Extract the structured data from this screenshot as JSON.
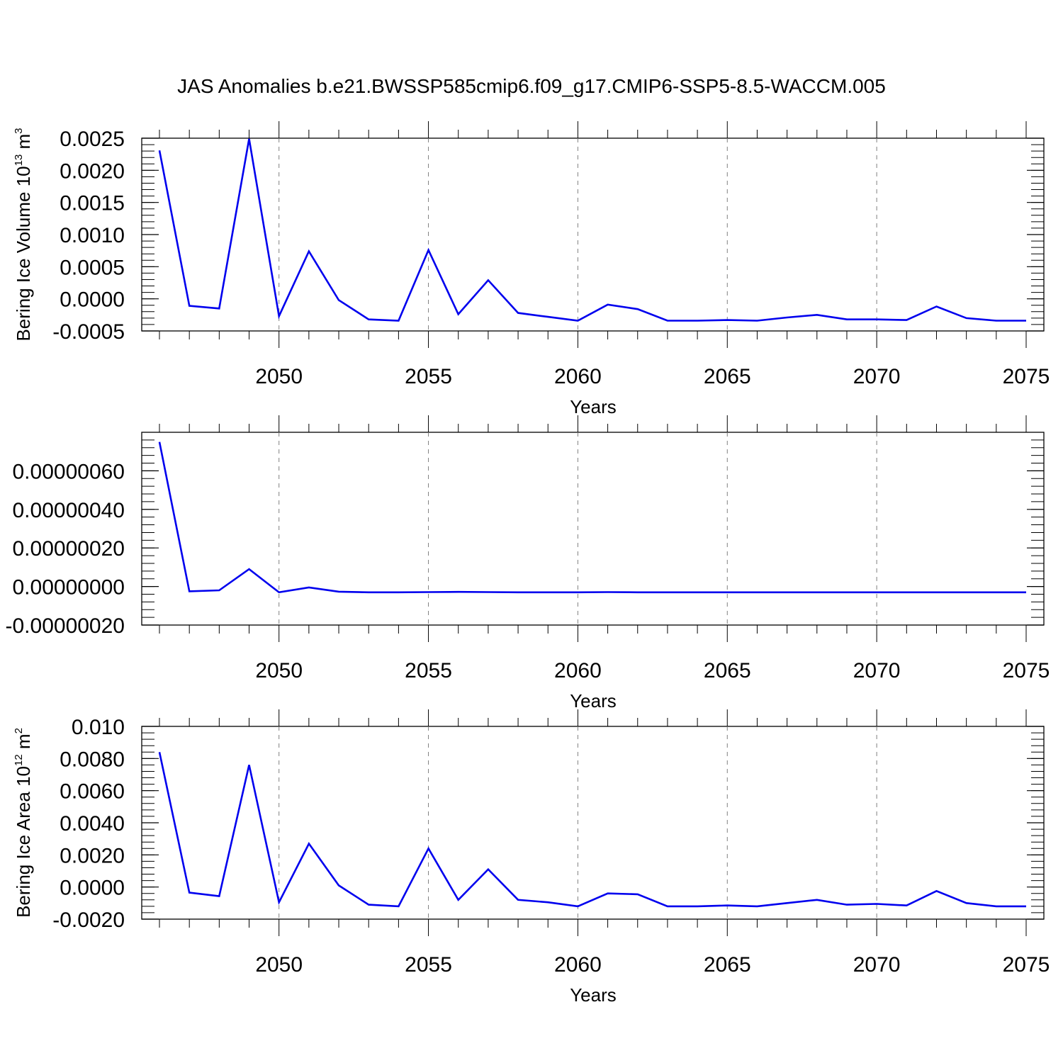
{
  "title": "JAS Anomalies b.e21.BWSSP585cmip6.f09_g17.CMIP6-SSP5-8.5-WACCM.005",
  "colors": {
    "line": "#0000ee",
    "axis": "#000000",
    "grid": "#808080"
  },
  "chart_data": [
    {
      "type": "line",
      "ylabel": {
        "text": "Bering Ice Volume 10",
        "exp": "13",
        "unit": " m",
        "unit_exp": "3"
      },
      "xlabel": "Years",
      "xlim": [
        2046,
        2075
      ],
      "ylim": [
        -0.0005,
        0.0025
      ],
      "xticks": [
        2050,
        2055,
        2060,
        2065,
        2070,
        2075
      ],
      "yticks": [
        -0.0005,
        0.0,
        0.0005,
        0.001,
        0.0015,
        0.002,
        0.0025
      ],
      "ytick_labels": [
        "-0.0005",
        "0.0000",
        "0.0005",
        "0.0010",
        "0.0015",
        "0.0020",
        "0.0025"
      ],
      "grid": "vertical-dashed",
      "x": [
        2046,
        2047,
        2048,
        2049,
        2050,
        2051,
        2052,
        2053,
        2054,
        2055,
        2056,
        2057,
        2058,
        2059,
        2060,
        2061,
        2062,
        2063,
        2064,
        2065,
        2066,
        2067,
        2068,
        2069,
        2070,
        2071,
        2072,
        2073,
        2074,
        2075
      ],
      "values": [
        0.00231,
        -0.00011,
        -0.00015,
        0.00249,
        -0.00027,
        0.00074,
        -2e-05,
        -0.00032,
        -0.00034,
        0.00076,
        -0.00024,
        0.00029,
        -0.00022,
        -0.00028,
        -0.00034,
        -9e-05,
        -0.00016,
        -0.00034,
        -0.00034,
        -0.00033,
        -0.00034,
        -0.00029,
        -0.00025,
        -0.00032,
        -0.00032,
        -0.00033,
        -0.00012,
        -0.0003,
        -0.00034,
        -0.00034
      ]
    },
    {
      "type": "line",
      "ylabel": null,
      "xlabel": "Years",
      "xlim": [
        2046,
        2075
      ],
      "ylim": [
        -2e-07,
        8e-07
      ],
      "xticks": [
        2050,
        2055,
        2060,
        2065,
        2070,
        2075
      ],
      "yticks": [
        -2e-07,
        0.0,
        2e-07,
        4e-07,
        6e-07
      ],
      "ytick_labels": [
        "-0.00000020",
        "0.00000000",
        "0.00000020",
        "0.00000040",
        "0.00000060"
      ],
      "grid": "vertical-dashed",
      "x": [
        2046,
        2047,
        2048,
        2049,
        2050,
        2051,
        2052,
        2053,
        2054,
        2055,
        2056,
        2057,
        2058,
        2059,
        2060,
        2061,
        2062,
        2063,
        2064,
        2065,
        2066,
        2067,
        2068,
        2069,
        2070,
        2071,
        2072,
        2073,
        2074,
        2075
      ],
      "values": [
        7.5e-07,
        -2.5e-08,
        -2e-08,
        9e-08,
        -3e-08,
        -5e-09,
        -2.7e-08,
        -3e-08,
        -3e-08,
        -2.9e-08,
        -2.8e-08,
        -2.9e-08,
        -3e-08,
        -3e-08,
        -3e-08,
        -2.9e-08,
        -3e-08,
        -3e-08,
        -3e-08,
        -3e-08,
        -3e-08,
        -3e-08,
        -3e-08,
        -3e-08,
        -3e-08,
        -3e-08,
        -3e-08,
        -3e-08,
        -3e-08,
        -3e-08
      ]
    },
    {
      "type": "line",
      "ylabel": {
        "text": "Bering Ice Area 10",
        "exp": "12",
        "unit": " m",
        "unit_exp": "2"
      },
      "xlabel": "Years",
      "xlim": [
        2046,
        2075
      ],
      "ylim": [
        -0.002,
        0.01
      ],
      "xticks": [
        2050,
        2055,
        2060,
        2065,
        2070,
        2075
      ],
      "yticks": [
        -0.002,
        0.0,
        0.002,
        0.004,
        0.006,
        0.008,
        0.01
      ],
      "ytick_labels": [
        "-0.0020",
        "0.0000",
        "0.0020",
        "0.0040",
        "0.0060",
        "0.0080",
        "0.010"
      ],
      "grid": "vertical-dashed",
      "x": [
        2046,
        2047,
        2048,
        2049,
        2050,
        2051,
        2052,
        2053,
        2054,
        2055,
        2056,
        2057,
        2058,
        2059,
        2060,
        2061,
        2062,
        2063,
        2064,
        2065,
        2066,
        2067,
        2068,
        2069,
        2070,
        2071,
        2072,
        2073,
        2074,
        2075
      ],
      "values": [
        0.0084,
        -0.00035,
        -0.00057,
        0.0076,
        -0.00095,
        0.0027,
        0.0001,
        -0.0011,
        -0.0012,
        0.0024,
        -0.0008,
        0.0011,
        -0.0008,
        -0.00095,
        -0.0012,
        -0.0004,
        -0.00045,
        -0.0012,
        -0.0012,
        -0.00115,
        -0.0012,
        -0.001,
        -0.0008,
        -0.0011,
        -0.00105,
        -0.00115,
        -0.00025,
        -0.001,
        -0.0012,
        -0.0012
      ]
    }
  ]
}
